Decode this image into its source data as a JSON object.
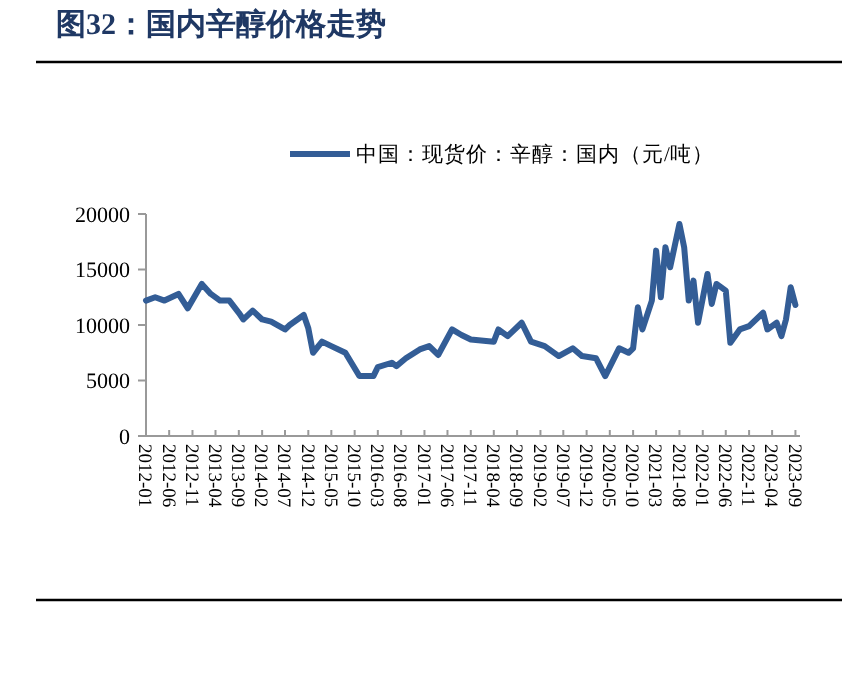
{
  "chart_data": {
    "type": "line",
    "title": "图32：国内辛醇价格走势",
    "legend": "top",
    "marker": "none",
    "line_style": "solid",
    "grid": false,
    "x": [
      "2012-01",
      "2012-03",
      "2012-05",
      "2012-08",
      "2012-10",
      "2013-01",
      "2013-03",
      "2013-05",
      "2013-07",
      "2013-09",
      "2013-10",
      "2013-12",
      "2014-02",
      "2014-04",
      "2014-07",
      "2014-08",
      "2014-11",
      "2014-12",
      "2015-01",
      "2015-03",
      "2015-05",
      "2015-08",
      "2015-11",
      "2016-02",
      "2016-03",
      "2016-06",
      "2016-07",
      "2016-09",
      "2016-12",
      "2017-02",
      "2017-04",
      "2017-07",
      "2017-09",
      "2017-11",
      "2018-04",
      "2018-05",
      "2018-07",
      "2018-10",
      "2018-12",
      "2019-03",
      "2019-06",
      "2019-09",
      "2019-11",
      "2020-02",
      "2020-04",
      "2020-07",
      "2020-09",
      "2020-10",
      "2020-11",
      "2020-12",
      "2021-02",
      "2021-03",
      "2021-04",
      "2021-05",
      "2021-06",
      "2021-08",
      "2021-09",
      "2021-10",
      "2021-11",
      "2021-12",
      "2022-02",
      "2022-03",
      "2022-04",
      "2022-06",
      "2022-07",
      "2022-09",
      "2022-11",
      "2023-02",
      "2023-03",
      "2023-05",
      "2023-06",
      "2023-07",
      "2023-08",
      "2023-09"
    ],
    "series": [
      {
        "name": "中国：现货价：辛醇：国内（元/吨）",
        "color": "#335d96",
        "values": [
          12200,
          12500,
          12200,
          12800,
          11500,
          13700,
          12800,
          12200,
          12200,
          11100,
          10500,
          11300,
          10500,
          10300,
          9600,
          10000,
          10900,
          9700,
          7500,
          8500,
          8100,
          7500,
          5400,
          5400,
          6200,
          6600,
          6300,
          7000,
          7800,
          8100,
          7300,
          9600,
          9100,
          8700,
          8500,
          9600,
          9000,
          10200,
          8500,
          8100,
          7200,
          7900,
          7200,
          7000,
          5400,
          7900,
          7500,
          7900,
          11600,
          9600,
          12200,
          16700,
          12500,
          17000,
          15200,
          19100,
          17000,
          12200,
          14000,
          10200,
          14600,
          11900,
          13700,
          13100,
          8400,
          9600,
          9900,
          11100,
          9600,
          10200,
          9000,
          10500,
          13400,
          11800
        ]
      }
    ],
    "xlim": [
      "2012-01",
      "2023-10"
    ],
    "xticks": [
      "2012-01",
      "2012-06",
      "2012-11",
      "2013-04",
      "2013-09",
      "2014-02",
      "2014-07",
      "2014-12",
      "2015-05",
      "2015-10",
      "2016-03",
      "2016-08",
      "2017-01",
      "2017-06",
      "2017-11",
      "2018-04",
      "2018-09",
      "2019-02",
      "2019-07",
      "2019-12",
      "2020-05",
      "2020-10",
      "2021-03",
      "2021-08",
      "2022-01",
      "2022-06",
      "2022-11",
      "2023-04",
      "2023-09"
    ],
    "ylim": [
      0,
      20000
    ],
    "yticks": [
      0,
      5000,
      10000,
      15000,
      20000
    ]
  }
}
